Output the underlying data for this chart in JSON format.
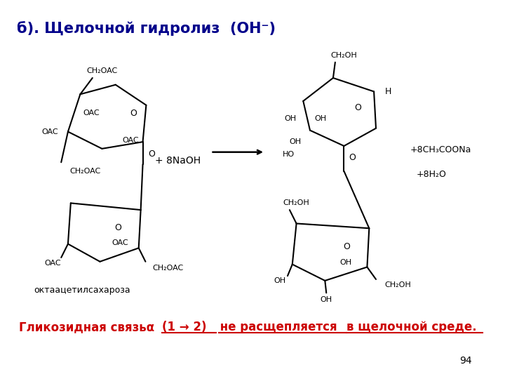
{
  "title": "б). Щелочной гидролиз  (ОН⁻)",
  "title_color": "#00008B",
  "title_fontsize": 15,
  "reagent": "+ 8NaOH",
  "product1": "+8CH₃COONa",
  "product2": "+8H₂O",
  "label_octaacetyl": "октаацетилсахароза",
  "bottom_text_part1": "Гликозидная связьα",
  "bottom_text_part2": "(1 → 2)",
  "bottom_text_part3": " не расщепляется ",
  "bottom_text_part4": "в щелочной среде.",
  "bottom_color": "#CC0000",
  "page_number": "94",
  "bg_color": "#FFFFFF"
}
